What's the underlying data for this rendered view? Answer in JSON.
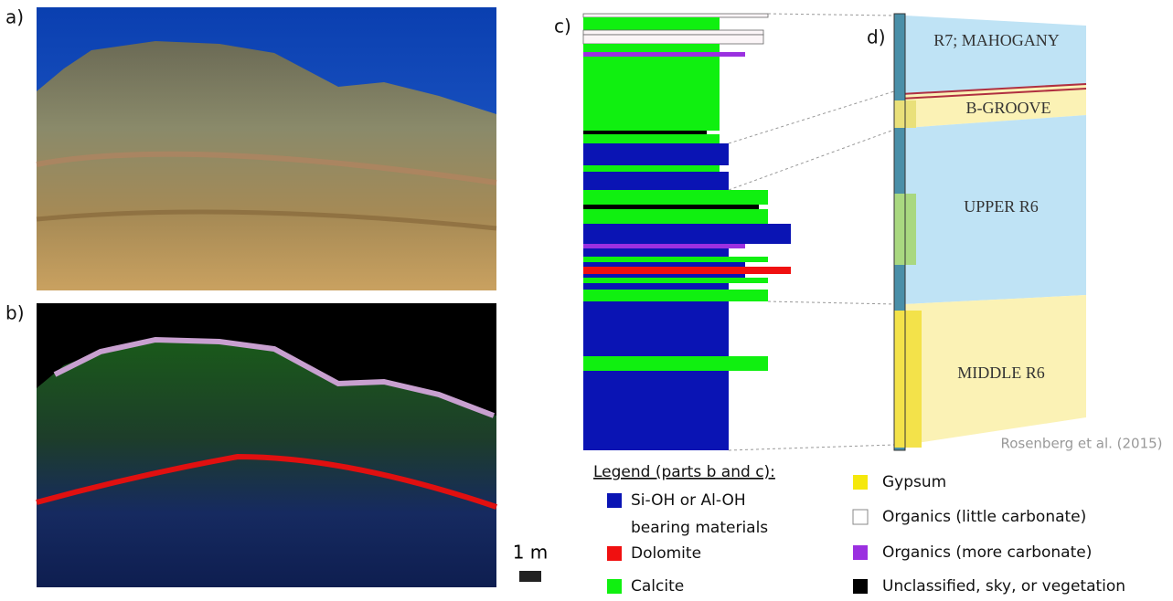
{
  "panels": {
    "a": "a)",
    "b": "b)",
    "c": "c)",
    "d": "d)"
  },
  "units": [
    "R7; MAHOGANY",
    "B-GROOVE",
    "UPPER R6",
    "MIDDLE R6"
  ],
  "scale_label": "1 m",
  "citation": "Rosenberg et al. (2015)",
  "legend": {
    "title": "Legend (parts b and c):",
    "items": [
      "Si-OH or Al-OH bearing materials",
      "Dolomite",
      "Calcite",
      "Gypsum",
      "Organics (little carbonate)",
      "Organics (more carbonate)",
      "Unclassified, sky, or vegetation"
    ]
  }
}
